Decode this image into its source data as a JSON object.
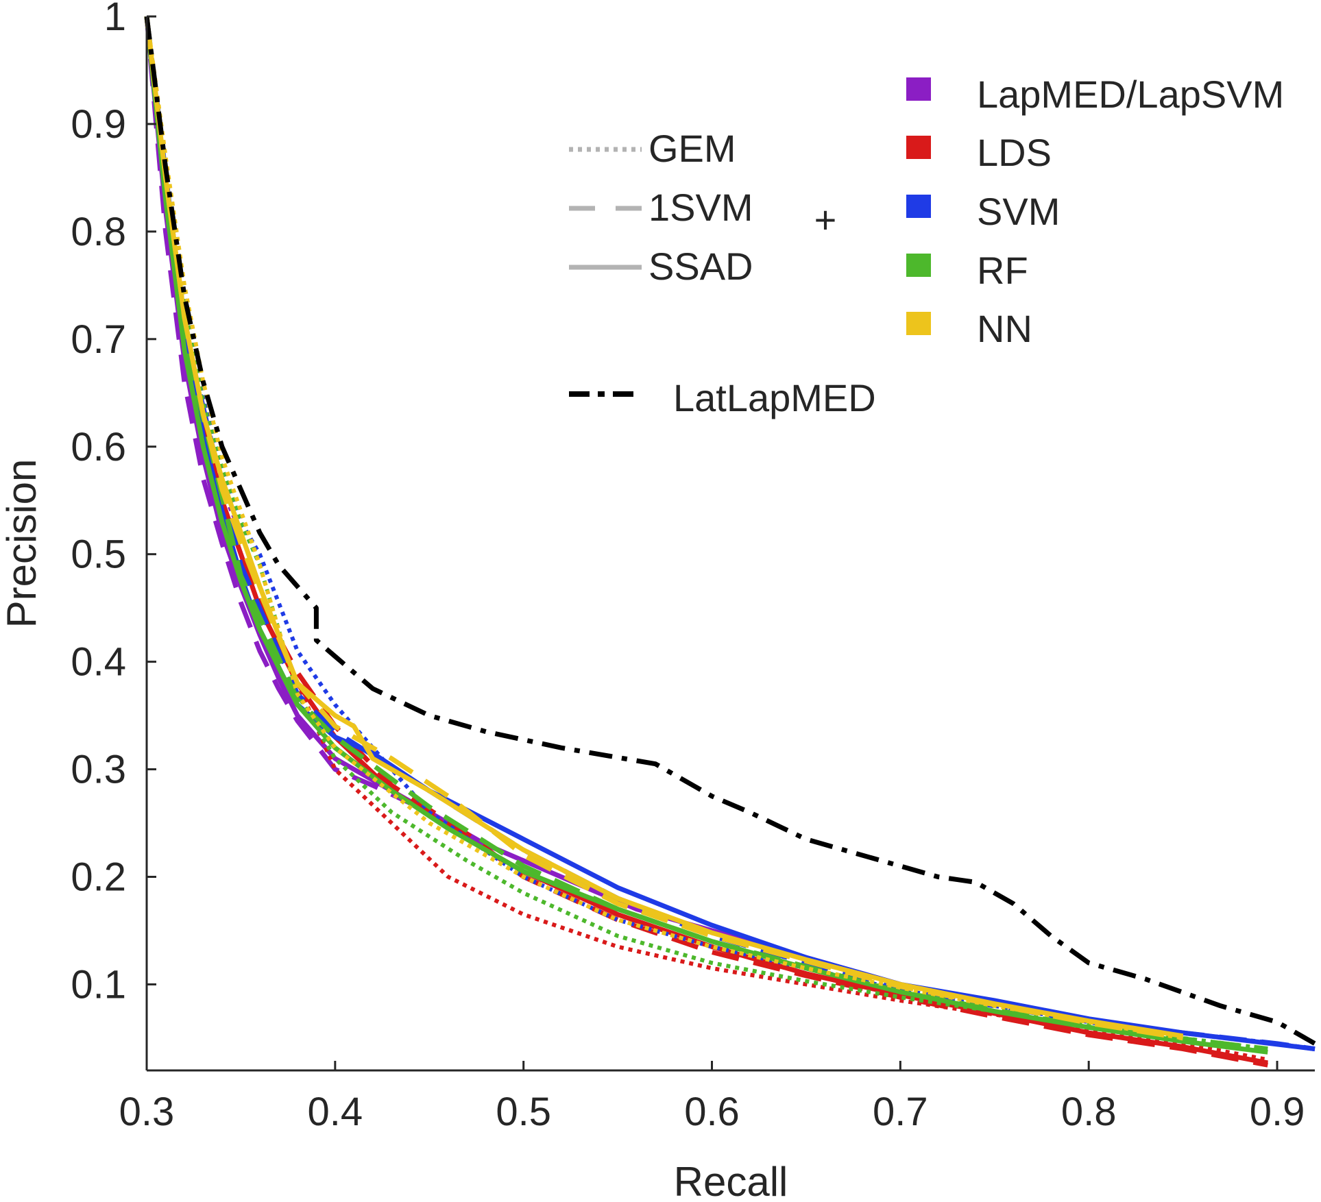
{
  "chart_data": {
    "type": "line",
    "title": "",
    "xlabel": "Recall",
    "ylabel": "Precision",
    "xlim": [
      0.3,
      0.92
    ],
    "ylim": [
      0.02,
      1.0
    ],
    "xticks": [
      "0.3",
      "0.4",
      "0.5",
      "0.6",
      "0.7",
      "0.8",
      "0.9"
    ],
    "yticks": [
      "0.1",
      "0.2",
      "0.3",
      "0.4",
      "0.5",
      "0.6",
      "0.7",
      "0.8",
      "0.9",
      "1"
    ],
    "grid": false,
    "legend": {
      "placement": "top-right",
      "styles": [
        {
          "name": "GEM",
          "dash": "dotted"
        },
        {
          "name": "1SVM",
          "dash": "dashed"
        },
        {
          "name": "SSAD",
          "dash": "solid"
        }
      ],
      "plus": "+",
      "colors": [
        {
          "name": "LapMED/LapSVM",
          "color": "#8B1EC4"
        },
        {
          "name": "LDS",
          "color": "#D91A1A"
        },
        {
          "name": "SVM",
          "color": "#1F3BE6"
        },
        {
          "name": "RF",
          "color": "#4DB82C"
        },
        {
          "name": "NN",
          "color": "#EDC41C"
        }
      ],
      "extra": {
        "name": "LatLapMED",
        "dash": "dashdot",
        "color": "#000000"
      }
    },
    "series": [
      {
        "name": "LapMED/LapSVM + SSAD",
        "color": "#8B1EC4",
        "dash": "solid",
        "x": [
          0.3,
          0.31,
          0.32,
          0.33,
          0.34,
          0.35,
          0.36,
          0.37,
          0.38,
          0.4,
          0.42,
          0.45,
          0.48,
          0.52,
          0.56,
          0.6,
          0.65,
          0.7
        ],
        "y": [
          1.0,
          0.82,
          0.68,
          0.59,
          0.52,
          0.47,
          0.425,
          0.385,
          0.35,
          0.31,
          0.29,
          0.26,
          0.23,
          0.2,
          0.17,
          0.15,
          0.125,
          0.1
        ]
      },
      {
        "name": "LapMED/LapSVM + 1SVM",
        "color": "#8B1EC4",
        "dash": "dashed",
        "x": [
          0.3,
          0.31,
          0.32,
          0.33,
          0.34,
          0.35,
          0.36,
          0.37,
          0.38,
          0.4,
          0.42,
          0.45
        ],
        "y": [
          1.0,
          0.8,
          0.66,
          0.57,
          0.51,
          0.455,
          0.41,
          0.375,
          0.345,
          0.3,
          0.285,
          0.26
        ]
      },
      {
        "name": "LapMED/LapSVM + GEM",
        "color": "#8B1EC4",
        "dash": "dotted",
        "x": [
          0.3,
          0.31,
          0.32,
          0.33,
          0.34,
          0.35,
          0.36
        ],
        "y": [
          1.0,
          0.83,
          0.7,
          0.62,
          0.56,
          0.52,
          0.47
        ]
      },
      {
        "name": "LDS + SSAD",
        "color": "#D91A1A",
        "dash": "solid",
        "x": [
          0.3,
          0.31,
          0.32,
          0.33,
          0.34,
          0.35,
          0.36,
          0.38,
          0.4,
          0.43,
          0.47,
          0.5,
          0.55,
          0.6,
          0.65,
          0.7,
          0.75,
          0.8,
          0.85,
          0.895
        ],
        "y": [
          1.0,
          0.84,
          0.71,
          0.62,
          0.55,
          0.5,
          0.45,
          0.38,
          0.33,
          0.28,
          0.235,
          0.205,
          0.165,
          0.135,
          0.11,
          0.09,
          0.073,
          0.055,
          0.042,
          0.027
        ]
      },
      {
        "name": "LDS + 1SVM",
        "color": "#D91A1A",
        "dash": "dashed",
        "x": [
          0.3,
          0.31,
          0.32,
          0.33,
          0.34,
          0.35,
          0.36,
          0.38,
          0.4,
          0.43,
          0.47,
          0.5,
          0.55,
          0.6,
          0.65,
          0.7,
          0.75,
          0.8,
          0.85,
          0.895
        ],
        "y": [
          1.0,
          0.85,
          0.72,
          0.63,
          0.56,
          0.5,
          0.455,
          0.39,
          0.34,
          0.285,
          0.24,
          0.2,
          0.16,
          0.13,
          0.108,
          0.088,
          0.07,
          0.053,
          0.04,
          0.025
        ]
      },
      {
        "name": "LDS + GEM",
        "color": "#D91A1A",
        "dash": "dotted",
        "x": [
          0.3,
          0.31,
          0.32,
          0.33,
          0.34,
          0.35,
          0.36,
          0.38,
          0.4,
          0.43,
          0.46,
          0.5,
          0.55,
          0.6,
          0.65,
          0.7,
          0.75,
          0.8,
          0.85,
          0.895
        ],
        "y": [
          1.0,
          0.86,
          0.73,
          0.64,
          0.57,
          0.52,
          0.47,
          0.38,
          0.3,
          0.25,
          0.2,
          0.165,
          0.135,
          0.115,
          0.1,
          0.085,
          0.072,
          0.058,
          0.045,
          0.03
        ]
      },
      {
        "name": "SVM + SSAD",
        "color": "#1F3BE6",
        "dash": "solid",
        "x": [
          0.3,
          0.31,
          0.32,
          0.33,
          0.34,
          0.35,
          0.36,
          0.38,
          0.4,
          0.42,
          0.45,
          0.5,
          0.55,
          0.6,
          0.65,
          0.7,
          0.75,
          0.8,
          0.85,
          0.92
        ],
        "y": [
          1.0,
          0.83,
          0.7,
          0.61,
          0.54,
          0.48,
          0.43,
          0.36,
          0.33,
          0.315,
          0.28,
          0.235,
          0.19,
          0.155,
          0.125,
          0.1,
          0.085,
          0.068,
          0.055,
          0.04
        ]
      },
      {
        "name": "SVM + 1SVM",
        "color": "#1F3BE6",
        "dash": "dashed",
        "x": [
          0.3,
          0.32,
          0.35,
          0.38,
          0.4,
          0.45,
          0.5,
          0.55,
          0.6,
          0.7,
          0.8,
          0.9,
          0.92
        ],
        "y": [
          1.0,
          0.71,
          0.49,
          0.37,
          0.335,
          0.28,
          0.225,
          0.18,
          0.145,
          0.095,
          0.065,
          0.045,
          0.04
        ]
      },
      {
        "name": "SVM + GEM",
        "color": "#1F3BE6",
        "dash": "dotted",
        "x": [
          0.3,
          0.31,
          0.32,
          0.33,
          0.34,
          0.35,
          0.36,
          0.38,
          0.4,
          0.45,
          0.5,
          0.55,
          0.6,
          0.7,
          0.8,
          0.9,
          0.92
        ],
        "y": [
          1.0,
          0.86,
          0.74,
          0.65,
          0.58,
          0.53,
          0.5,
          0.41,
          0.36,
          0.26,
          0.2,
          0.16,
          0.135,
          0.095,
          0.065,
          0.045,
          0.04
        ]
      },
      {
        "name": "RF + SSAD",
        "color": "#4DB82C",
        "dash": "solid",
        "x": [
          0.3,
          0.31,
          0.32,
          0.33,
          0.34,
          0.35,
          0.36,
          0.38,
          0.4,
          0.43,
          0.46,
          0.5,
          0.55,
          0.6,
          0.65,
          0.7,
          0.75,
          0.8,
          0.85,
          0.895
        ],
        "y": [
          1.0,
          0.83,
          0.69,
          0.6,
          0.53,
          0.475,
          0.43,
          0.36,
          0.32,
          0.28,
          0.245,
          0.205,
          0.17,
          0.14,
          0.115,
          0.093,
          0.075,
          0.06,
          0.047,
          0.037
        ]
      },
      {
        "name": "RF + 1SVM",
        "color": "#4DB82C",
        "dash": "dashed",
        "x": [
          0.3,
          0.32,
          0.35,
          0.38,
          0.4,
          0.45,
          0.5,
          0.55,
          0.6,
          0.7,
          0.8,
          0.895
        ],
        "y": [
          1.0,
          0.7,
          0.48,
          0.365,
          0.33,
          0.265,
          0.21,
          0.17,
          0.14,
          0.093,
          0.06,
          0.04
        ]
      },
      {
        "name": "RF + GEM",
        "color": "#4DB82C",
        "dash": "dotted",
        "x": [
          0.3,
          0.31,
          0.32,
          0.33,
          0.34,
          0.35,
          0.36,
          0.38,
          0.4,
          0.43,
          0.47,
          0.5,
          0.55,
          0.6,
          0.65,
          0.7,
          0.75,
          0.8,
          0.85,
          0.895
        ],
        "y": [
          1.0,
          0.85,
          0.73,
          0.64,
          0.58,
          0.53,
          0.49,
          0.37,
          0.31,
          0.26,
          0.215,
          0.185,
          0.145,
          0.12,
          0.103,
          0.088,
          0.075,
          0.062,
          0.05,
          0.04
        ]
      },
      {
        "name": "NN + SSAD",
        "color": "#EDC41C",
        "dash": "solid",
        "x": [
          0.3,
          0.31,
          0.32,
          0.33,
          0.34,
          0.35,
          0.36,
          0.38,
          0.4,
          0.41,
          0.42,
          0.45,
          0.5,
          0.55,
          0.6,
          0.65,
          0.7,
          0.75,
          0.8,
          0.85
        ],
        "y": [
          1.0,
          0.85,
          0.72,
          0.63,
          0.57,
          0.52,
          0.47,
          0.38,
          0.35,
          0.34,
          0.31,
          0.28,
          0.225,
          0.18,
          0.148,
          0.123,
          0.1,
          0.082,
          0.066,
          0.052
        ]
      },
      {
        "name": "NN + 1SVM",
        "color": "#EDC41C",
        "dash": "dashed",
        "x": [
          0.3,
          0.31,
          0.32,
          0.33,
          0.34,
          0.35,
          0.36,
          0.38,
          0.4,
          0.43,
          0.46,
          0.5,
          0.55,
          0.6,
          0.7,
          0.8,
          0.85
        ],
        "y": [
          1.0,
          0.85,
          0.72,
          0.63,
          0.56,
          0.51,
          0.465,
          0.38,
          0.34,
          0.31,
          0.275,
          0.22,
          0.175,
          0.145,
          0.098,
          0.064,
          0.05
        ]
      },
      {
        "name": "NN + GEM",
        "color": "#EDC41C",
        "dash": "dotted",
        "x": [
          0.3,
          0.31,
          0.32,
          0.33,
          0.34,
          0.35,
          0.36,
          0.38,
          0.4,
          0.45,
          0.5,
          0.55,
          0.6,
          0.65,
          0.7,
          0.75,
          0.8,
          0.85
        ],
        "y": [
          1.0,
          0.87,
          0.75,
          0.66,
          0.59,
          0.54,
          0.49,
          0.37,
          0.32,
          0.25,
          0.2,
          0.16,
          0.135,
          0.115,
          0.097,
          0.08,
          0.065,
          0.05
        ]
      },
      {
        "name": "LatLapMED",
        "color": "#000000",
        "dash": "dashdot",
        "x": [
          0.3,
          0.31,
          0.32,
          0.33,
          0.34,
          0.35,
          0.36,
          0.37,
          0.38,
          0.39,
          0.39,
          0.4,
          0.42,
          0.45,
          0.48,
          0.52,
          0.57,
          0.6,
          0.62,
          0.65,
          0.7,
          0.72,
          0.74,
          0.76,
          0.78,
          0.8,
          0.83,
          0.87,
          0.9,
          0.91,
          0.92
        ],
        "y": [
          1.0,
          0.86,
          0.74,
          0.66,
          0.6,
          0.56,
          0.52,
          0.49,
          0.47,
          0.45,
          0.42,
          0.405,
          0.375,
          0.35,
          0.335,
          0.32,
          0.305,
          0.275,
          0.26,
          0.235,
          0.21,
          0.2,
          0.195,
          0.175,
          0.145,
          0.12,
          0.105,
          0.08,
          0.065,
          0.055,
          0.045
        ]
      }
    ]
  }
}
